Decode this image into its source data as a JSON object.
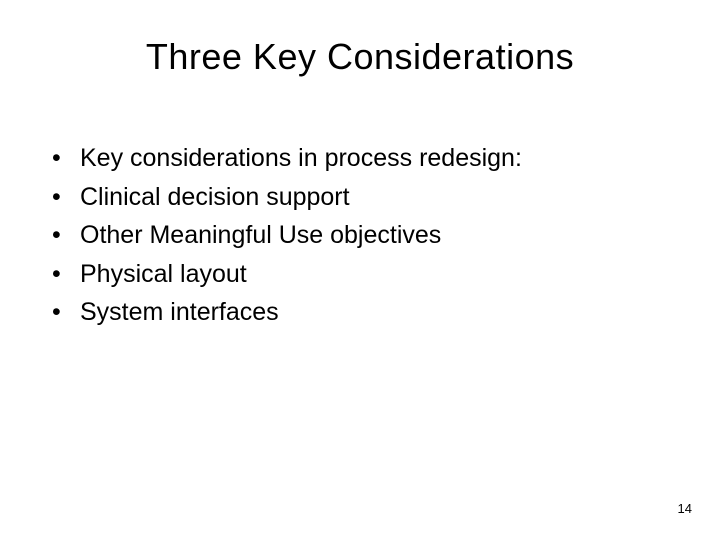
{
  "title": "Three Key Considerations",
  "bullets": [
    "Key considerations in process redesign:",
    "Clinical decision support",
    "Other Meaningful Use objectives",
    "Physical layout",
    "System interfaces"
  ],
  "page_number": "14",
  "colors": {
    "background": "#ffffff",
    "text": "#000000"
  },
  "typography": {
    "title_fontsize": 36,
    "title_font": "Verdana",
    "bullet_fontsize": 25,
    "bullet_font": "Arial",
    "pagenum_fontsize": 13
  }
}
